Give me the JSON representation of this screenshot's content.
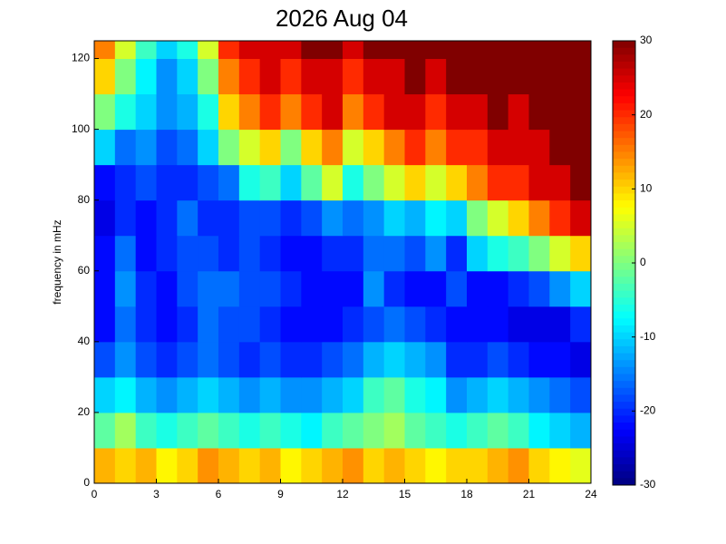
{
  "chart_data": {
    "type": "heatmap",
    "title": "2026 Aug 04",
    "y_label": "frequency in mHz",
    "xbins": [
      0,
      1,
      2,
      3,
      4,
      5,
      6,
      7,
      8,
      9,
      10,
      11,
      12,
      13,
      14,
      15,
      16,
      17,
      18,
      19,
      20,
      21,
      22,
      23,
      24
    ],
    "ybins": [
      0,
      10,
      20,
      30,
      40,
      50,
      60,
      70,
      80,
      90,
      100,
      110,
      120,
      125
    ],
    "xlim": [
      0,
      24
    ],
    "ylim": [
      0,
      125
    ],
    "xticks": [
      0,
      3,
      6,
      9,
      12,
      15,
      18,
      21,
      24
    ],
    "yticks": [
      0,
      20,
      40,
      60,
      80,
      100,
      120
    ],
    "clim": [
      -30,
      30
    ],
    "cticks": [
      -30,
      -20,
      -10,
      0,
      10,
      20,
      30
    ],
    "colormap": "jet",
    "z": [
      [
        12,
        10,
        12,
        8,
        10,
        14,
        12,
        10,
        12,
        8,
        10,
        12,
        14,
        10,
        12,
        10,
        8,
        10,
        10,
        12,
        14,
        10,
        8,
        6
      ],
      [
        -2,
        2,
        -4,
        -6,
        -4,
        -2,
        -4,
        -6,
        -4,
        -6,
        -8,
        -4,
        -2,
        0,
        2,
        -2,
        -4,
        -6,
        -4,
        -2,
        -4,
        -8,
        -10,
        -12
      ],
      [
        -10,
        -8,
        -12,
        -14,
        -12,
        -10,
        -12,
        -14,
        -12,
        -14,
        -14,
        -12,
        -10,
        -4,
        -2,
        -6,
        -8,
        -14,
        -12,
        -10,
        -12,
        -14,
        -16,
        -18
      ],
      [
        -18,
        -14,
        -18,
        -20,
        -18,
        -16,
        -18,
        -20,
        -18,
        -20,
        -20,
        -18,
        -16,
        -12,
        -10,
        -12,
        -14,
        -20,
        -20,
        -18,
        -20,
        -22,
        -22,
        -24
      ],
      [
        -22,
        -16,
        -20,
        -22,
        -20,
        -16,
        -18,
        -18,
        -20,
        -22,
        -22,
        -22,
        -20,
        -18,
        -16,
        -18,
        -20,
        -22,
        -22,
        -22,
        -24,
        -24,
        -24,
        -20
      ],
      [
        -22,
        -14,
        -20,
        -22,
        -18,
        -16,
        -16,
        -18,
        -18,
        -20,
        -22,
        -22,
        -22,
        -14,
        -20,
        -22,
        -22,
        -18,
        -22,
        -22,
        -20,
        -18,
        -14,
        -10
      ],
      [
        -22,
        -16,
        -22,
        -20,
        -18,
        -18,
        -20,
        -18,
        -20,
        -22,
        -22,
        -20,
        -20,
        -16,
        -16,
        -18,
        -14,
        -20,
        -10,
        -6,
        -4,
        0,
        5,
        10
      ],
      [
        -24,
        -20,
        -22,
        -20,
        -16,
        -20,
        -20,
        -18,
        -18,
        -20,
        -18,
        -14,
        -16,
        -14,
        -10,
        -12,
        -8,
        -10,
        0,
        5,
        10,
        15,
        20,
        25
      ],
      [
        -22,
        -20,
        -18,
        -20,
        -20,
        -18,
        -16,
        -6,
        -4,
        -10,
        -2,
        5,
        -6,
        0,
        5,
        10,
        5,
        10,
        15,
        20,
        20,
        25,
        25,
        30
      ],
      [
        -10,
        -16,
        -14,
        -18,
        -16,
        -10,
        0,
        5,
        10,
        0,
        10,
        15,
        5,
        10,
        15,
        20,
        15,
        20,
        20,
        25,
        25,
        25,
        30,
        30
      ],
      [
        0,
        -6,
        -10,
        -14,
        -12,
        -6,
        10,
        15,
        20,
        15,
        20,
        25,
        15,
        20,
        25,
        25,
        20,
        25,
        25,
        30,
        25,
        30,
        30,
        30
      ],
      [
        10,
        0,
        -8,
        -14,
        -10,
        0,
        15,
        20,
        25,
        20,
        25,
        25,
        20,
        25,
        25,
        30,
        25,
        30,
        30,
        30,
        30,
        30,
        30,
        30
      ],
      [
        15,
        5,
        -4,
        -10,
        -6,
        5,
        20,
        25,
        25,
        25,
        30,
        30,
        25,
        30,
        30,
        30,
        30,
        30,
        30,
        30,
        30,
        30,
        30,
        30
      ]
    ]
  }
}
